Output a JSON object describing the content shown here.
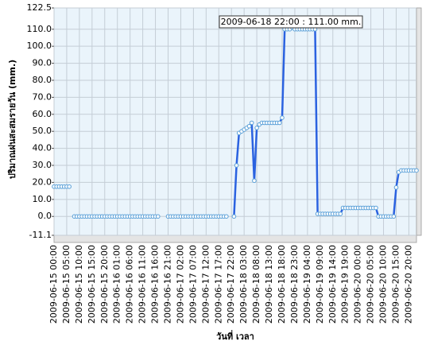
{
  "chart_data": {
    "type": "line",
    "y_label": "ปริมาณฝนสะสมรายวัน  (mm.)",
    "x_label": "วันที่ เวลา",
    "annotation": "2009-06-18 22:00 : 111.00 mm.",
    "color": "#2b62e0",
    "grid": true,
    "ylim": [
      -11.1,
      122.5
    ],
    "yticks": [
      -11.1,
      {
        "value": 0,
        "label": "0.0"
      },
      {
        "value": 10,
        "label": "10.0"
      },
      {
        "value": 20,
        "label": "20.0"
      },
      {
        "value": 30,
        "label": "30.0"
      },
      {
        "value": 40,
        "label": "40.0"
      },
      {
        "value": 50,
        "label": "50.0"
      },
      {
        "value": 60,
        "label": "60.0"
      },
      {
        "value": 70,
        "label": "70.0"
      },
      {
        "value": 80,
        "label": "80.0"
      },
      {
        "value": 90,
        "label": "90.0"
      },
      {
        "value": 100,
        "label": "100.0"
      },
      {
        "value": 110,
        "label": "110.0"
      },
      122.5
    ],
    "xticks": [
      "2009-06-15 00:00",
      "2009-06-15 05:00",
      "2009-06-15 10:00",
      "2009-06-15 15:00",
      "2009-06-15 20:00",
      "2009-06-16 01:00",
      "2009-06-16 06:00",
      "2009-06-16 11:00",
      "2009-06-16 16:00",
      "2009-06-16 21:00",
      "2009-06-17 02:00",
      "2009-06-17 07:00",
      "2009-06-17 12:00",
      "2009-06-17 17:00",
      "2009-06-17 22:00",
      "2009-06-18 03:00",
      "2009-06-18 08:00",
      "2009-06-18 13:00",
      "2009-06-18 18:00",
      "2009-06-18 23:00",
      "2009-06-19 04:00",
      "2009-06-19 09:00",
      "2009-06-19 14:00",
      "2009-06-19 19:00",
      "2009-06-20 00:00",
      "2009-06-20 05:00",
      "2009-06-20 10:00",
      "2009-06-20 15:00",
      "2009-06-20 20:00"
    ],
    "x": [
      "2009-06-15 00:00",
      "2009-06-15 01:00",
      "2009-06-15 02:00",
      "2009-06-15 03:00",
      "2009-06-15 04:00",
      "2009-06-15 05:00",
      "2009-06-15 06:00",
      "2009-06-15 07:00",
      "2009-06-15 08:00",
      "2009-06-15 09:00",
      "2009-06-15 10:00",
      "2009-06-15 11:00",
      "2009-06-15 12:00",
      "2009-06-15 13:00",
      "2009-06-15 14:00",
      "2009-06-15 15:00",
      "2009-06-15 16:00",
      "2009-06-15 17:00",
      "2009-06-15 18:00",
      "2009-06-15 19:00",
      "2009-06-15 20:00",
      "2009-06-15 21:00",
      "2009-06-15 22:00",
      "2009-06-15 23:00",
      "2009-06-16 00:00",
      "2009-06-16 01:00",
      "2009-06-16 02:00",
      "2009-06-16 03:00",
      "2009-06-16 04:00",
      "2009-06-16 05:00",
      "2009-06-16 06:00",
      "2009-06-16 07:00",
      "2009-06-16 08:00",
      "2009-06-16 09:00",
      "2009-06-16 10:00",
      "2009-06-16 11:00",
      "2009-06-16 12:00",
      "2009-06-16 13:00",
      "2009-06-16 14:00",
      "2009-06-16 15:00",
      "2009-06-16 16:00",
      "2009-06-16 17:00",
      "2009-06-16 18:00",
      "2009-06-16 19:00",
      "2009-06-16 20:00",
      "2009-06-16 21:00",
      "2009-06-16 22:00",
      "2009-06-16 23:00",
      "2009-06-17 00:00",
      "2009-06-17 01:00",
      "2009-06-17 02:00",
      "2009-06-17 03:00",
      "2009-06-17 04:00",
      "2009-06-17 05:00",
      "2009-06-17 06:00",
      "2009-06-17 07:00",
      "2009-06-17 08:00",
      "2009-06-17 09:00",
      "2009-06-17 10:00",
      "2009-06-17 11:00",
      "2009-06-17 12:00",
      "2009-06-17 13:00",
      "2009-06-17 14:00",
      "2009-06-17 15:00",
      "2009-06-17 16:00",
      "2009-06-17 17:00",
      "2009-06-17 18:00",
      "2009-06-17 19:00",
      "2009-06-17 20:00",
      "2009-06-17 21:00",
      "2009-06-17 22:00",
      "2009-06-17 23:00",
      "2009-06-18 00:00",
      "2009-06-18 01:00",
      "2009-06-18 02:00",
      "2009-06-18 03:00",
      "2009-06-18 04:00",
      "2009-06-18 05:00",
      "2009-06-18 06:00",
      "2009-06-18 07:00",
      "2009-06-18 08:00",
      "2009-06-18 09:00",
      "2009-06-18 10:00",
      "2009-06-18 11:00",
      "2009-06-18 12:00",
      "2009-06-18 13:00",
      "2009-06-18 14:00",
      "2009-06-18 15:00",
      "2009-06-18 16:00",
      "2009-06-18 17:00",
      "2009-06-18 18:00",
      "2009-06-18 19:00",
      "2009-06-18 20:00",
      "2009-06-18 21:00",
      "2009-06-18 22:00",
      "2009-06-18 23:00",
      "2009-06-19 00:00",
      "2009-06-19 01:00",
      "2009-06-19 02:00",
      "2009-06-19 03:00",
      "2009-06-19 04:00",
      "2009-06-19 05:00",
      "2009-06-19 06:00",
      "2009-06-19 07:00",
      "2009-06-19 08:00",
      "2009-06-19 09:00",
      "2009-06-19 10:00",
      "2009-06-19 11:00",
      "2009-06-19 12:00",
      "2009-06-19 13:00",
      "2009-06-19 14:00",
      "2009-06-19 15:00",
      "2009-06-19 16:00",
      "2009-06-19 17:00",
      "2009-06-19 18:00",
      "2009-06-19 19:00",
      "2009-06-19 20:00",
      "2009-06-19 21:00",
      "2009-06-19 22:00",
      "2009-06-19 23:00",
      "2009-06-20 00:00",
      "2009-06-20 01:00",
      "2009-06-20 02:00",
      "2009-06-20 03:00",
      "2009-06-20 04:00",
      "2009-06-20 05:00",
      "2009-06-20 06:00",
      "2009-06-20 07:00",
      "2009-06-20 08:00",
      "2009-06-20 09:00",
      "2009-06-20 10:00",
      "2009-06-20 11:00",
      "2009-06-20 12:00",
      "2009-06-20 13:00",
      "2009-06-20 14:00",
      "2009-06-20 15:00",
      "2009-06-20 16:00",
      "2009-06-20 17:00",
      "2009-06-20 18:00",
      "2009-06-20 19:00",
      "2009-06-20 20:00",
      "2009-06-20 21:00",
      "2009-06-20 22:00",
      "2009-06-20 23:00"
    ],
    "values": [
      17.5,
      17.5,
      17.5,
      17.5,
      17.5,
      17.5,
      17.5,
      null,
      0,
      0,
      0,
      0,
      0,
      0,
      0,
      0,
      0,
      0,
      0,
      0,
      0,
      0,
      0,
      0,
      0,
      0,
      0,
      0,
      0,
      0,
      0,
      0,
      0,
      0,
      0,
      0,
      0,
      0,
      0,
      0,
      0,
      0,
      null,
      null,
      null,
      0,
      0,
      0,
      0,
      0,
      0,
      0,
      0,
      0,
      0,
      0,
      0,
      0,
      0,
      0,
      0,
      0,
      0,
      0,
      0,
      0,
      0,
      0,
      0,
      null,
      null,
      0,
      30,
      49,
      50,
      51,
      52,
      53,
      55,
      21,
      52,
      54,
      55,
      55,
      55,
      55,
      55,
      55,
      55,
      55,
      58,
      110,
      110,
      110,
      111,
      110,
      110,
      110,
      110,
      110,
      110,
      110,
      110,
      110,
      1.5,
      1.5,
      1.5,
      1.5,
      1.5,
      1.5,
      1.5,
      1.5,
      1.5,
      1.5,
      5,
      5,
      5,
      5,
      5,
      5,
      5,
      5,
      5,
      5,
      5,
      5,
      5,
      5,
      0,
      0,
      0,
      0,
      0,
      0,
      0,
      17,
      26,
      27,
      27,
      27,
      27,
      27,
      27,
      27
    ]
  }
}
